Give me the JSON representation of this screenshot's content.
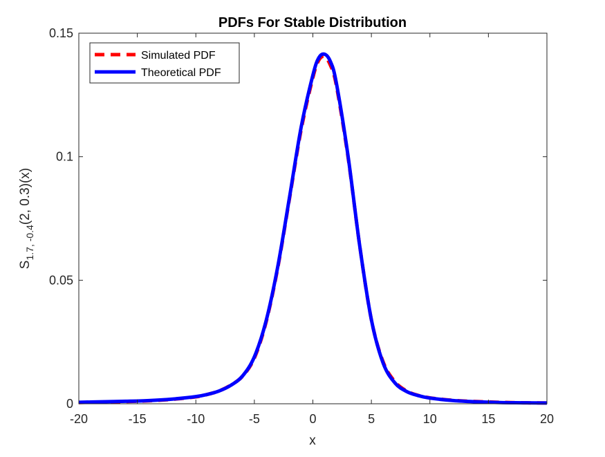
{
  "chart_data": {
    "type": "line",
    "title": "PDFs For Stable Distribution",
    "xlabel": "x",
    "ylabel": {
      "base": "S",
      "subscript": "1.7, -0.4",
      "suffix": "(2, 0.3)(x)"
    },
    "xlim": [
      -20,
      20
    ],
    "ylim": [
      0,
      0.15
    ],
    "xticks": [
      -20,
      -15,
      -10,
      -5,
      0,
      5,
      10,
      15,
      20
    ],
    "xtick_labels": [
      "-20",
      "-15",
      "-10",
      "-5",
      "0",
      "5",
      "10",
      "15",
      "20"
    ],
    "yticks": [
      0,
      0.05,
      0.1,
      0.15
    ],
    "ytick_labels": [
      "0",
      "0.05",
      "0.1",
      "0.15"
    ],
    "grid": false,
    "legend_position": "top-left",
    "series": [
      {
        "name": "Simulated PDF",
        "color": "#ff0000",
        "style": "dashed",
        "x": [
          -20,
          -18,
          -16,
          -14,
          -12,
          -10,
          -9,
          -8,
          -7,
          -6,
          -5,
          -4,
          -3,
          -2,
          -1,
          0,
          0.5,
          1,
          1.5,
          2,
          3,
          4,
          5,
          6,
          7,
          8,
          9,
          10,
          12,
          14,
          16,
          18,
          20
        ],
        "y": [
          0.0005,
          0.0007,
          0.0009,
          0.0012,
          0.0018,
          0.0028,
          0.0038,
          0.0052,
          0.0076,
          0.0112,
          0.0185,
          0.033,
          0.055,
          0.083,
          0.111,
          0.132,
          0.139,
          0.1405,
          0.137,
          0.129,
          0.1,
          0.064,
          0.034,
          0.017,
          0.009,
          0.0052,
          0.0034,
          0.0024,
          0.0014,
          0.0009,
          0.0006,
          0.0004,
          0.0003
        ]
      },
      {
        "name": "Theoretical PDF",
        "color": "#0000ff",
        "style": "solid",
        "x": [
          -20,
          -18,
          -16,
          -14,
          -12,
          -10,
          -9,
          -8,
          -7,
          -6,
          -5,
          -4,
          -3,
          -2,
          -1,
          0,
          0.5,
          1,
          1.5,
          2,
          3,
          4,
          5,
          6,
          7,
          8,
          9,
          10,
          12,
          14,
          16,
          18,
          20
        ],
        "y": [
          0.0006,
          0.0008,
          0.001,
          0.0013,
          0.0019,
          0.0029,
          0.0038,
          0.0052,
          0.0075,
          0.0113,
          0.019,
          0.0335,
          0.0555,
          0.0835,
          0.112,
          0.133,
          0.14,
          0.1415,
          0.1385,
          0.13,
          0.1005,
          0.064,
          0.034,
          0.0165,
          0.0085,
          0.005,
          0.0033,
          0.0023,
          0.0013,
          0.0008,
          0.0005,
          0.0004,
          0.0003
        ]
      }
    ]
  }
}
